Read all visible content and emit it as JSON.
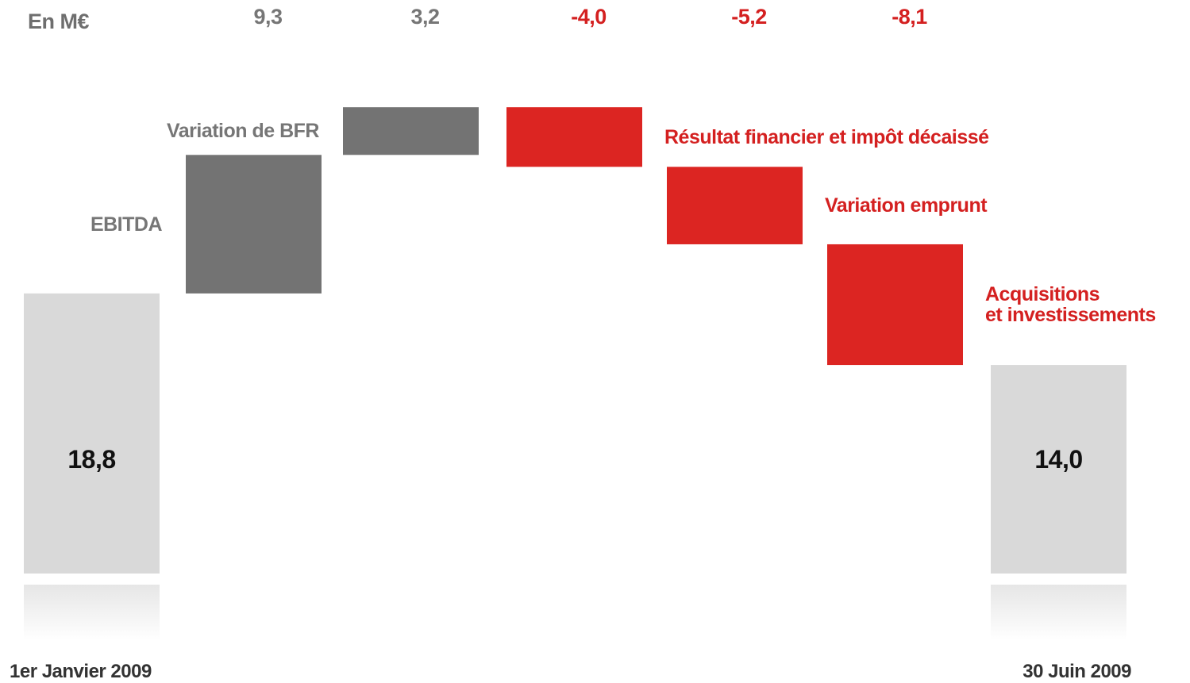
{
  "chart_data": {
    "type": "waterfall",
    "title": "En M€",
    "categories": [
      "1er Janvier 2009",
      "EBITDA",
      "Variation de BFR",
      "Résultat financier et impôt décaissé",
      "Variation emprunt",
      "Acquisitions\net investissements",
      "30 Juin 2009"
    ],
    "values": [
      18.8,
      9.3,
      3.2,
      -4.0,
      -5.2,
      -8.1,
      14.0
    ],
    "value_labels": [
      "18,8",
      "9,3",
      "3,2",
      "-4,0",
      "-5,2",
      "-8,1",
      "14,0"
    ],
    "totals": [
      0,
      6
    ],
    "total_color": "#d9d9d9",
    "increase_color": "#737373",
    "decrease_color": "#dc2522"
  }
}
